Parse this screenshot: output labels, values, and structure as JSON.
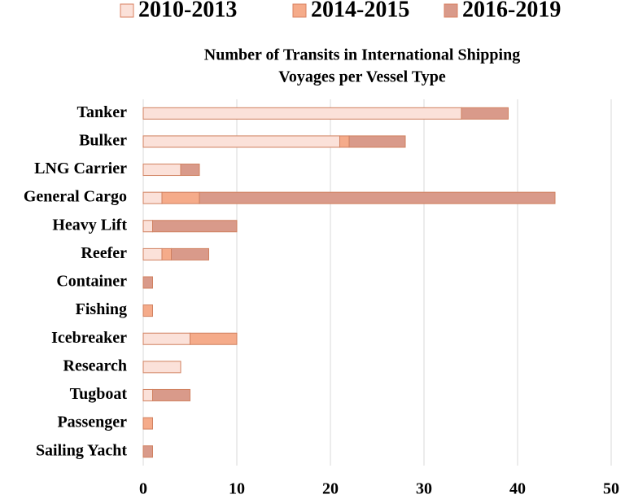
{
  "chart_data": {
    "type": "stacked-barh",
    "title": "Number of Transits in International Shipping",
    "subtitle": "Voyages per Vessel Type",
    "categories": [
      "Tanker",
      "Bulker",
      "LNG Carrier",
      "General Cargo",
      "Heavy Lift",
      "Reefer",
      "Container",
      "Fishing",
      "Icebreaker",
      "Research",
      "Tugboat",
      "Passenger",
      "Sailing Yacht"
    ],
    "series": [
      {
        "name": "2010-2013",
        "color": "#fbe1d9",
        "values": [
          34,
          21,
          4,
          2,
          1,
          2,
          0,
          0,
          5,
          4,
          1,
          0,
          0
        ]
      },
      {
        "name": "2014-2015",
        "color": "#f5ab8a",
        "values": [
          0,
          1,
          0,
          4,
          0,
          1,
          0,
          1,
          5,
          0,
          0,
          1,
          0
        ]
      },
      {
        "name": "2016-2019",
        "color": "#d99a8a",
        "values": [
          5,
          6,
          2,
          38,
          9,
          4,
          1,
          0,
          0,
          0,
          4,
          0,
          1
        ]
      }
    ],
    "xlim": [
      0,
      50
    ],
    "xticks": [
      0,
      10,
      20,
      30,
      40,
      50
    ],
    "grid": true,
    "legend": "top"
  }
}
